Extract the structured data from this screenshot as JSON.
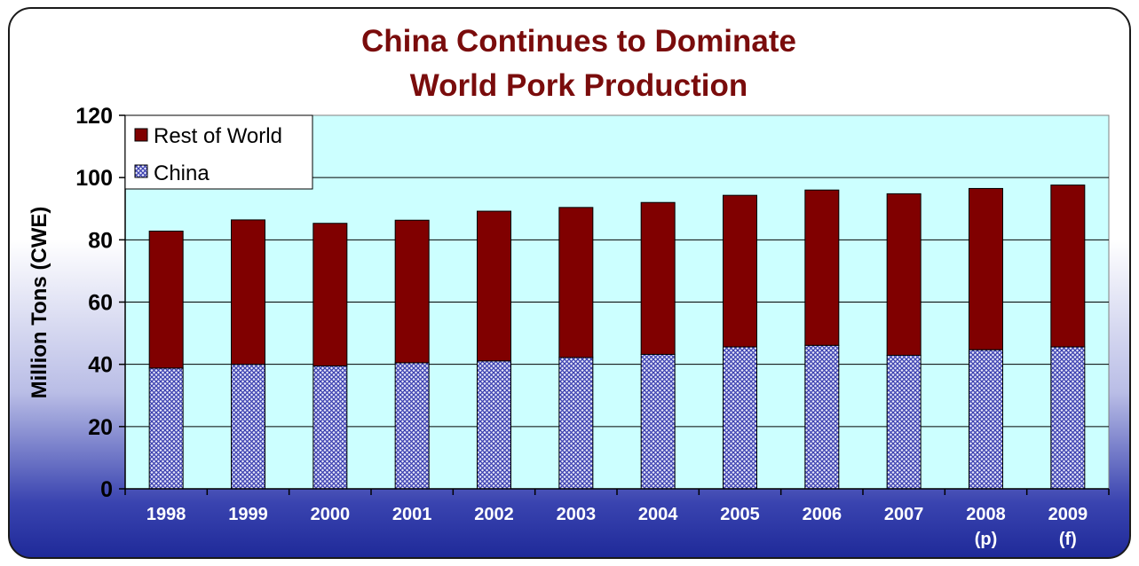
{
  "chart_data": {
    "type": "bar",
    "stacked": true,
    "title_lines": [
      "China Continues to Dominate",
      "World Pork Production"
    ],
    "xlabel": "",
    "ylabel": "Million Tons (CWE)",
    "ylim": [
      0,
      120
    ],
    "yticks": [
      0,
      20,
      40,
      60,
      80,
      100,
      120
    ],
    "grid": true,
    "legend_position": "top-left",
    "categories": [
      [
        "1998"
      ],
      [
        "1999"
      ],
      [
        "2000"
      ],
      [
        "2001"
      ],
      [
        "2002"
      ],
      [
        "2003"
      ],
      [
        "2004"
      ],
      [
        "2005"
      ],
      [
        "2006"
      ],
      [
        "2007"
      ],
      [
        "2008",
        "(p)"
      ],
      [
        "2009",
        "(f)"
      ]
    ],
    "series": [
      {
        "name": "China",
        "pattern": "crosshatch",
        "color": "#5b5fc0",
        "values": [
          38.8,
          40.0,
          39.5,
          40.5,
          41.1,
          42.2,
          43.2,
          45.6,
          46.1,
          42.9,
          44.7,
          45.6
        ]
      },
      {
        "name": "Rest of World",
        "pattern": "solid",
        "color": "#800000",
        "values": [
          44.0,
          46.4,
          45.8,
          45.8,
          48.1,
          48.2,
          48.8,
          48.7,
          49.9,
          51.9,
          51.8,
          52.0
        ]
      }
    ],
    "colors": {
      "title": "#7a0c0c",
      "plot_background": "#ccffff",
      "x_tick_label": "#ffffff"
    }
  }
}
